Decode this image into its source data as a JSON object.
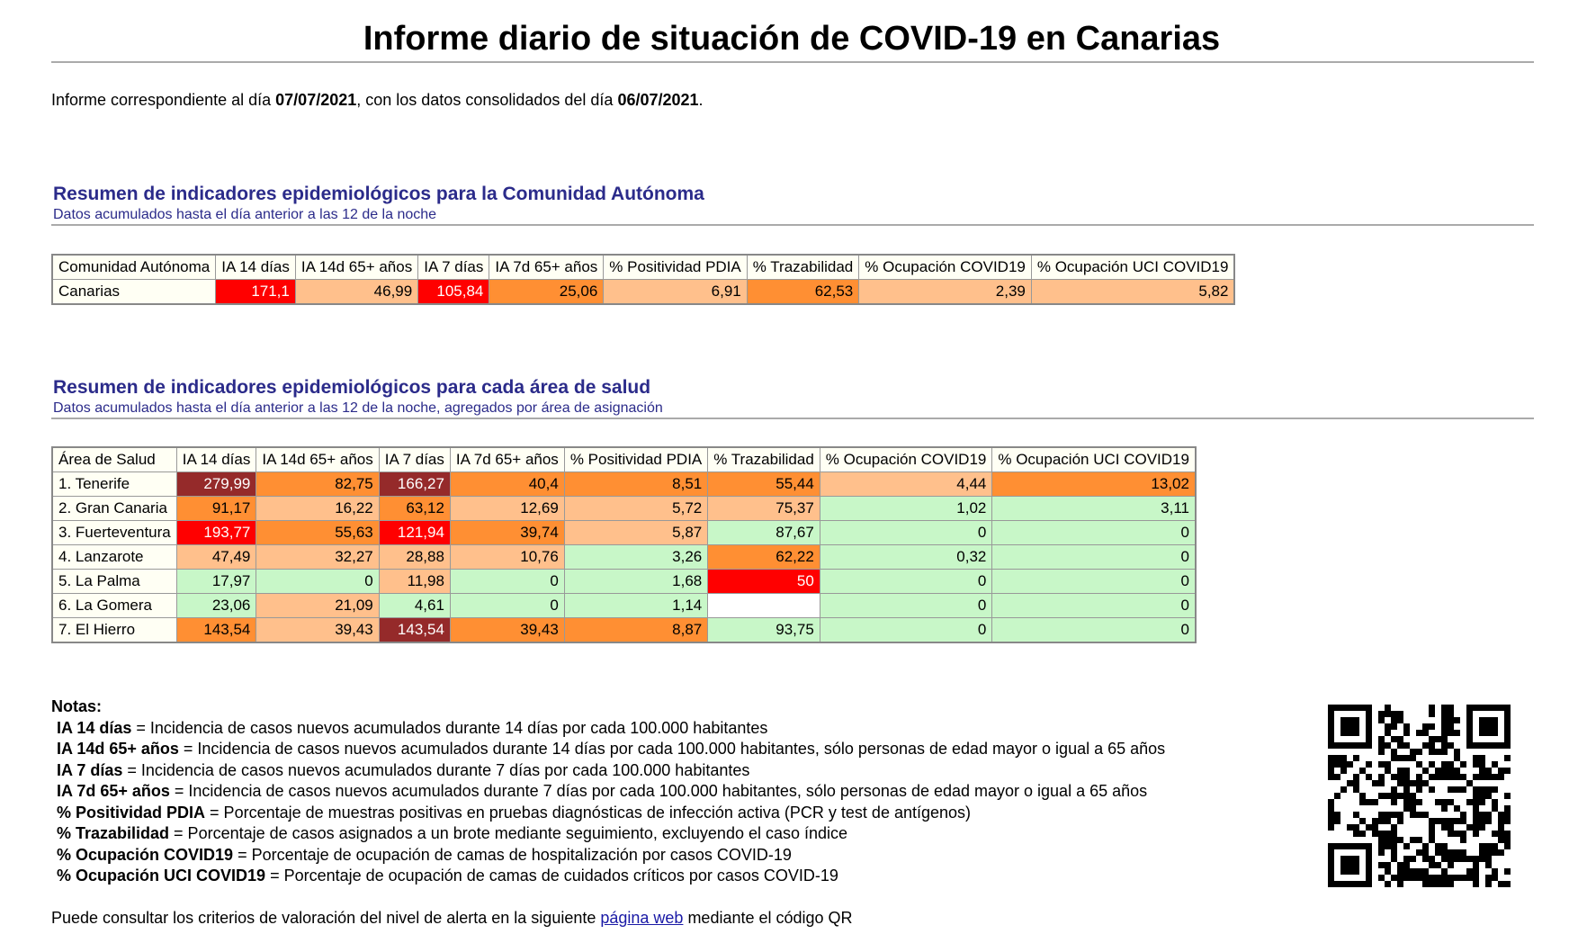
{
  "title": "Informe diario de situación de COVID-19 en Canarias",
  "intro": [
    "Informe correspondiente al día ",
    "07/07/2021",
    ", con los datos consolidados del día ",
    "06/07/2021",
    "."
  ],
  "sections": [
    {
      "title": "Resumen de indicadores epidemiológicos para la Comunidad Autónoma",
      "subtitle": "Datos acumulados hasta el día anterior a las 12 de la noche",
      "headers": [
        "Comunidad Autónoma",
        "IA 14 días",
        "IA 14d 65+ años",
        "IA 7 días",
        "IA 7d 65+ años",
        "% Positividad PDIA",
        "% Trazabilidad",
        "% Ocupación COVID19",
        "% Ocupación UCI COVID19"
      ],
      "rows": [
        [
          "Canarias",
          "171,1",
          "46,99",
          "105,84",
          "25,06",
          "6,91",
          "62,53",
          "2,39",
          "5,82"
        ]
      ],
      "colors": [
        [
          "#fffff4",
          "#ff0000",
          "#ffc08c",
          "#ff0000",
          "#ff8f33",
          "#ffc08c",
          "#ff8f33",
          "#ffc08c",
          "#ffc08c"
        ]
      ]
    },
    {
      "title": "Resumen de indicadores epidemiológicos para cada área de salud",
      "subtitle": "Datos acumulados hasta el día anterior a las 12 de la noche, agregados por área de asignación",
      "headers": [
        "Área de Salud",
        "IA 14 días",
        "IA 14d 65+ años",
        "IA 7 días",
        "IA 7d 65+ años",
        "% Positividad PDIA",
        "% Trazabilidad",
        "% Ocupación COVID19",
        "% Ocupación UCI COVID19"
      ],
      "rows": [
        [
          "1. Tenerife",
          "279,99",
          "82,75",
          "166,27",
          "40,4",
          "8,51",
          "55,44",
          "4,44",
          "13,02"
        ],
        [
          "2. Gran Canaria",
          "91,17",
          "16,22",
          "63,12",
          "12,69",
          "5,72",
          "75,37",
          "1,02",
          "3,11"
        ],
        [
          "3. Fuerteventura",
          "193,77",
          "55,63",
          "121,94",
          "39,74",
          "5,87",
          "87,67",
          "0",
          "0"
        ],
        [
          "4. Lanzarote",
          "47,49",
          "32,27",
          "28,88",
          "10,76",
          "3,26",
          "62,22",
          "0,32",
          "0"
        ],
        [
          "5. La Palma",
          "17,97",
          "0",
          "11,98",
          "0",
          "1,68",
          "50",
          "0",
          "0"
        ],
        [
          "6. La Gomera",
          "23,06",
          "21,09",
          "4,61",
          "0",
          "1,14",
          null,
          "0",
          "0"
        ],
        [
          "7. El Hierro",
          "143,54",
          "39,43",
          "143,54",
          "39,43",
          "8,87",
          "93,75",
          "0",
          "0"
        ]
      ],
      "colors": [
        [
          "#fffff4",
          "#952a2a",
          "#ff8f33",
          "#952a2a",
          "#ff8f33",
          "#ff8f33",
          "#ff8f33",
          "#ffc08c",
          "#ff8f33"
        ],
        [
          "#fffff4",
          "#ff8f33",
          "#ffc08c",
          "#ff8f33",
          "#ffc08c",
          "#ffc08c",
          "#ffc08c",
          "#c8f7c8",
          "#c8f7c8"
        ],
        [
          "#fffff4",
          "#ff0000",
          "#ff8f33",
          "#ff0000",
          "#ff8f33",
          "#ffc08c",
          "#c8f7c8",
          "#c8f7c8",
          "#c8f7c8"
        ],
        [
          "#fffff4",
          "#ffc08c",
          "#ffc08c",
          "#ffc08c",
          "#ffc08c",
          "#c8f7c8",
          "#ff8f33",
          "#c8f7c8",
          "#c8f7c8"
        ],
        [
          "#fffff4",
          "#c8f7c8",
          "#c8f7c8",
          "#ffc08c",
          "#c8f7c8",
          "#c8f7c8",
          "#ff0000",
          "#c8f7c8",
          "#c8f7c8"
        ],
        [
          "#fffff4",
          "#c8f7c8",
          "#ffc08c",
          "#c8f7c8",
          "#c8f7c8",
          "#c8f7c8",
          "#ffffff",
          "#c8f7c8",
          "#c8f7c8"
        ],
        [
          "#fffff4",
          "#ff8f33",
          "#ffc08c",
          "#952a2a",
          "#ff8f33",
          "#ff8f33",
          "#c8f7c8",
          "#c8f7c8",
          "#c8f7c8"
        ]
      ]
    }
  ],
  "notes": {
    "title": "Notas:",
    "items": [
      [
        "IA 14 días",
        " = Incidencia de casos nuevos acumulados durante 14 días por cada 100.000 habitantes"
      ],
      [
        "IA 14d 65+ años",
        " = Incidencia de casos nuevos acumulados durante 14 días por cada 100.000 habitantes, sólo personas de edad mayor o igual a 65 años"
      ],
      [
        "IA 7 días",
        " = Incidencia de casos nuevos acumulados durante 7 días por cada 100.000 habitantes"
      ],
      [
        "IA 7d 65+ años",
        " = Incidencia de casos nuevos acumulados durante 7 días por cada 100.000 habitantes, sólo personas de edad mayor o igual a 65 años"
      ],
      [
        "% Positividad PDIA",
        " = Porcentaje de muestras positivas en pruebas diagnósticas de infección activa (PCR y test de antígenos)"
      ],
      [
        "% Trazabilidad",
        " = Porcentaje de casos asignados a un brote mediante seguimiento, excluyendo el caso índice"
      ],
      [
        "% Ocupación COVID19",
        " = Porcentaje de ocupación de camas de hospitalización por casos COVID-19"
      ],
      [
        "% Ocupación UCI COVID19",
        " = Porcentaje de ocupación de camas de cuidados críticos por casos COVID-19"
      ]
    ]
  },
  "footer": [
    "Puede consultar los criterios de valoración del nivel de alerta en la siguiente ",
    "página web",
    " mediante el código QR"
  ]
}
